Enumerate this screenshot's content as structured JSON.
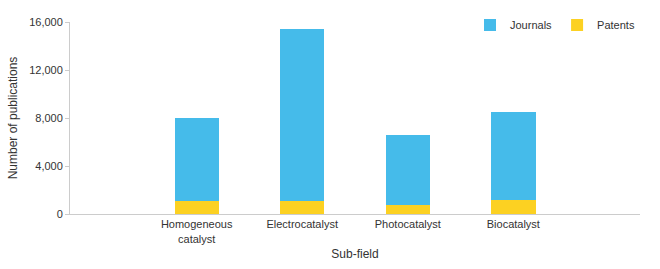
{
  "chart_data": {
    "type": "bar",
    "stacked": true,
    "x_label": "Sub-field",
    "y_label": "Number of publications",
    "categories": [
      "Homogeneous catalyst",
      "Electrocatalyst",
      "Photocatalyst",
      "Biocatalyst"
    ],
    "series": [
      {
        "name": "Journals",
        "color": "#45bbea",
        "values": [
          6900,
          14300,
          5850,
          7350
        ]
      },
      {
        "name": "Patents",
        "color": "#fcd122",
        "values": [
          1100,
          1100,
          750,
          1150
        ]
      }
    ],
    "ylim": [
      0,
      16000
    ],
    "yticks": [
      0,
      {
        "value": 4000,
        "label": "4,000"
      },
      {
        "value": 8000,
        "label": "8,000"
      },
      {
        "value": 12000,
        "label": "12,000"
      },
      {
        "value": 16000,
        "label": "16,000"
      }
    ],
    "grid": false,
    "legend": "top right"
  }
}
